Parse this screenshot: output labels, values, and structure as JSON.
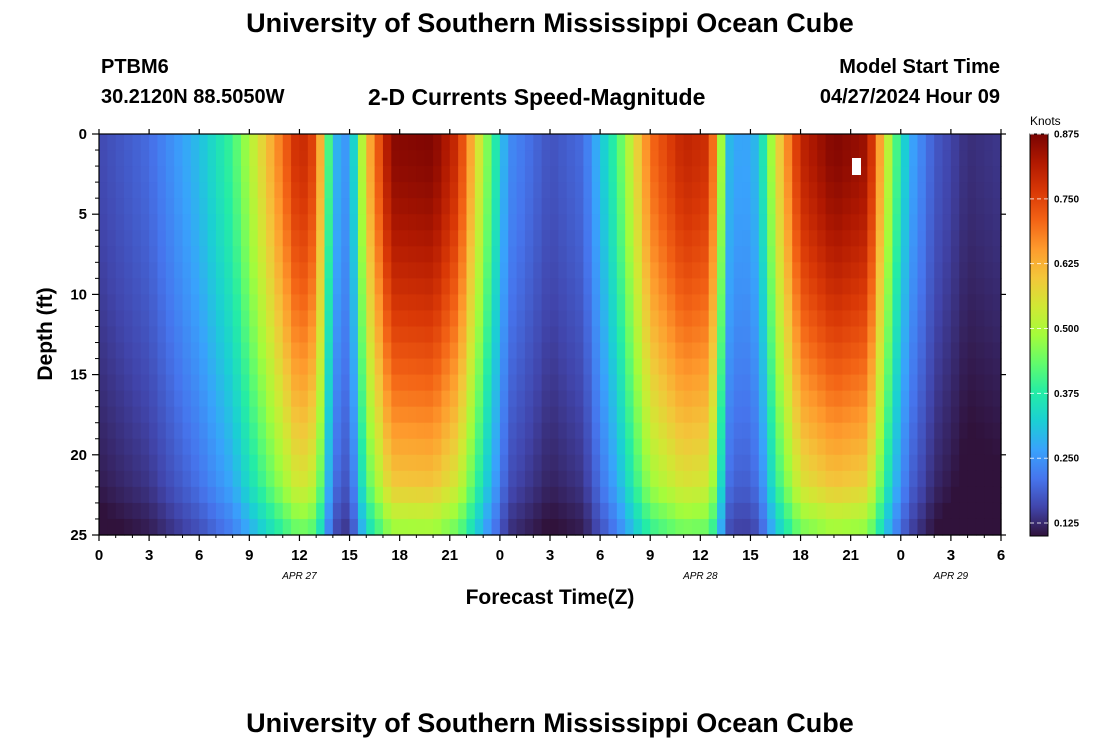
{
  "header": {
    "title": "University of Southern Mississippi Ocean Cube",
    "station_id": "PTBM6",
    "coordinates": "30.2120N  88.5050W",
    "subtitle": "2-D Currents Speed-Magnitude",
    "model_start_label": "Model Start Time",
    "model_start_value": "04/27/2024 Hour 09"
  },
  "footer": {
    "title": "University of Southern Mississippi Ocean Cube"
  },
  "chart_data": {
    "type": "heatmap",
    "xlabel": "Forecast Time(Z)",
    "ylabel": "Depth (ft)",
    "colorbar_label": "Knots",
    "x_range": [
      0,
      54
    ],
    "y_range": [
      0,
      25
    ],
    "y_inverted": true,
    "x_ticks": [
      {
        "value": 0,
        "label": "0"
      },
      {
        "value": 3,
        "label": "3"
      },
      {
        "value": 6,
        "label": "6"
      },
      {
        "value": 9,
        "label": "9"
      },
      {
        "value": 12,
        "label": "12"
      },
      {
        "value": 15,
        "label": "15"
      },
      {
        "value": 18,
        "label": "18"
      },
      {
        "value": 21,
        "label": "21"
      },
      {
        "value": 24,
        "label": "0"
      },
      {
        "value": 27,
        "label": "3"
      },
      {
        "value": 30,
        "label": "6"
      },
      {
        "value": 33,
        "label": "9"
      },
      {
        "value": 36,
        "label": "12"
      },
      {
        "value": 39,
        "label": "15"
      },
      {
        "value": 42,
        "label": "18"
      },
      {
        "value": 45,
        "label": "21"
      },
      {
        "value": 48,
        "label": "0"
      },
      {
        "value": 51,
        "label": "3"
      },
      {
        "value": 54,
        "label": "6"
      }
    ],
    "date_labels": [
      {
        "value": 12,
        "label": "APR 27"
      },
      {
        "value": 36,
        "label": "APR 28"
      },
      {
        "value": 51,
        "label": "APR 29"
      }
    ],
    "y_ticks": [
      0,
      5,
      10,
      15,
      20,
      25
    ],
    "colorbar": {
      "min": 0.1,
      "max": 0.875,
      "ticks": [
        "0.125",
        "0.250",
        "0.375",
        "0.500",
        "0.625",
        "0.750",
        "0.875"
      ],
      "colors": [
        "#30123b",
        "#4145ab",
        "#4675ed",
        "#39a2fc",
        "#1bcfd4",
        "#24eca6",
        "#61fc6c",
        "#a4fc3b",
        "#d1e834",
        "#f3c63a",
        "#fe9b2d",
        "#f36315",
        "#d93806",
        "#b11901",
        "#7a0402"
      ]
    },
    "time_profile": [
      {
        "t": 0,
        "v": 0.16
      },
      {
        "t": 3,
        "v": 0.2
      },
      {
        "t": 6,
        "v": 0.3
      },
      {
        "t": 8,
        "v": 0.4
      },
      {
        "t": 10,
        "v": 0.6
      },
      {
        "t": 12,
        "v": 0.8
      },
      {
        "t": 13,
        "v": 0.74
      },
      {
        "t": 14,
        "v": 0.3
      },
      {
        "t": 15,
        "v": 0.24
      },
      {
        "t": 16,
        "v": 0.6
      },
      {
        "t": 17.5,
        "v": 0.86
      },
      {
        "t": 20,
        "v": 0.87
      },
      {
        "t": 21.5,
        "v": 0.78
      },
      {
        "t": 23,
        "v": 0.5
      },
      {
        "t": 24.5,
        "v": 0.24
      },
      {
        "t": 27,
        "v": 0.17
      },
      {
        "t": 29,
        "v": 0.2
      },
      {
        "t": 31,
        "v": 0.4
      },
      {
        "t": 33,
        "v": 0.7
      },
      {
        "t": 35,
        "v": 0.8
      },
      {
        "t": 36.5,
        "v": 0.78
      },
      {
        "t": 37,
        "v": 0.62
      },
      {
        "t": 37.6,
        "v": 0.3
      },
      {
        "t": 38.5,
        "v": 0.26
      },
      {
        "t": 39.5,
        "v": 0.3
      },
      {
        "t": 40.5,
        "v": 0.55
      },
      {
        "t": 42,
        "v": 0.8
      },
      {
        "t": 44,
        "v": 0.87
      },
      {
        "t": 46,
        "v": 0.84
      },
      {
        "t": 47.5,
        "v": 0.45
      },
      {
        "t": 48.5,
        "v": 0.28
      },
      {
        "t": 50,
        "v": 0.18
      },
      {
        "t": 52,
        "v": 0.13
      },
      {
        "t": 54,
        "v": 0.14
      }
    ],
    "description_values": {
      "peak_speed_knots": 0.875,
      "min_speed_knots": 0.1
    }
  }
}
